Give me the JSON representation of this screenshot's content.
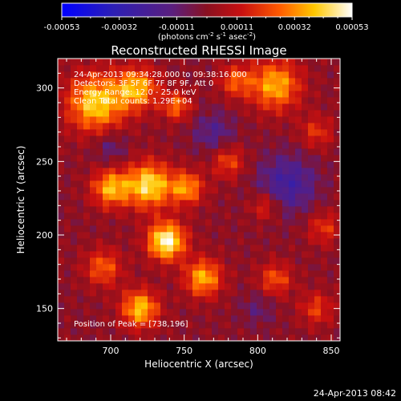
{
  "chart_data": {
    "type": "heatmap",
    "title": "Reconstructed RHESSI Image",
    "xlabel": "Heliocentric X (arcsec)",
    "ylabel": "Heliocentric Y (arcsec)",
    "xlim": [
      664,
      856
    ],
    "ylim": [
      128,
      320
    ],
    "xticks": [
      700,
      750,
      800,
      850
    ],
    "yticks": [
      150,
      200,
      250,
      300
    ],
    "colormap": "blue-purple-red-yellow-white",
    "colorbar": {
      "range": [
        -0.00053,
        0.00053
      ],
      "tick_values": [
        -0.00053,
        -0.00032,
        -0.00011,
        0.00011,
        0.00032,
        0.00053
      ],
      "tick_labels": [
        "-0.00053",
        "-0.00032",
        "-0.00011",
        "0.00011",
        "0.00032",
        "0.00053"
      ],
      "units_prefix": "(photons cm",
      "units_exp1": "-2",
      "units_mid1": " s",
      "units_exp2": "-1",
      "units_mid2": " asec",
      "units_exp3": "-2",
      "units_suffix": ")"
    },
    "annotations": [
      "24-Apr-2013 09:34:28.000 to 09:38:16.000",
      "Detectors: 3F 5F 6F 7F 8F 9F, Att 0",
      "Energy Range: 12.0 - 25.0 keV",
      "Clean     Total counts: 1.29E+04"
    ],
    "peak_label": "Position of Peak = [738,196]",
    "peak_position": [
      738,
      196
    ],
    "peak_value": 0.00053,
    "sources": [
      {
        "x": 738,
        "y": 196,
        "sigma": 9,
        "amp": 1.0
      },
      {
        "x": 726,
        "y": 234,
        "sigma": 11,
        "amp": 0.85
      },
      {
        "x": 700,
        "y": 232,
        "sigma": 9,
        "amp": 0.7
      },
      {
        "x": 752,
        "y": 232,
        "sigma": 8,
        "amp": 0.62
      },
      {
        "x": 690,
        "y": 290,
        "sigma": 14,
        "amp": 0.8
      },
      {
        "x": 718,
        "y": 300,
        "sigma": 10,
        "amp": 0.68
      },
      {
        "x": 745,
        "y": 288,
        "sigma": 7,
        "amp": 0.52
      },
      {
        "x": 812,
        "y": 302,
        "sigma": 12,
        "amp": 0.7
      },
      {
        "x": 785,
        "y": 305,
        "sigma": 8,
        "amp": 0.45
      },
      {
        "x": 763,
        "y": 171,
        "sigma": 9,
        "amp": 0.7
      },
      {
        "x": 720,
        "y": 150,
        "sigma": 9,
        "amp": 0.75
      },
      {
        "x": 695,
        "y": 178,
        "sigma": 9,
        "amp": 0.48
      },
      {
        "x": 780,
        "y": 250,
        "sigma": 8,
        "amp": 0.42
      },
      {
        "x": 805,
        "y": 220,
        "sigma": 7,
        "amp": 0.38
      },
      {
        "x": 812,
        "y": 170,
        "sigma": 8,
        "amp": 0.45
      },
      {
        "x": 840,
        "y": 150,
        "sigma": 8,
        "amp": 0.38
      },
      {
        "x": 845,
        "y": 205,
        "sigma": 8,
        "amp": 0.36
      },
      {
        "x": 840,
        "y": 270,
        "sigma": 8,
        "amp": 0.35
      },
      {
        "x": 820,
        "y": 235,
        "sigma": 14,
        "amp": -0.45
      },
      {
        "x": 770,
        "y": 270,
        "sigma": 10,
        "amp": -0.3
      },
      {
        "x": 700,
        "y": 260,
        "sigma": 8,
        "amp": -0.25
      },
      {
        "x": 800,
        "y": 150,
        "sigma": 8,
        "amp": -0.2
      }
    ]
  },
  "footer": {
    "timestamp": "24-Apr-2013 08:42"
  }
}
